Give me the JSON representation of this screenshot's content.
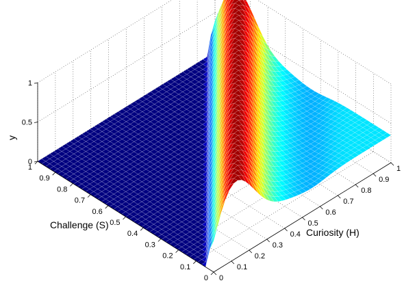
{
  "chart_data": {
    "type": "surface",
    "title": "",
    "xlabel": "Curiosity (H)",
    "ylabel": "Challenge (S)",
    "zlabel": "y",
    "xlim": [
      0,
      1
    ],
    "ylim": [
      0,
      1
    ],
    "zlim": [
      0,
      1
    ],
    "x_ticks": [
      "0",
      "0.1",
      "0.2",
      "0.3",
      "0.4",
      "0.5",
      "0.6",
      "0.7",
      "0.8",
      "0.9",
      "1"
    ],
    "y_ticks": [
      "0",
      "0.1",
      "0.2",
      "0.3",
      "0.4",
      "0.5",
      "0.6",
      "0.7",
      "0.8",
      "0.9",
      "1"
    ],
    "z_ticks": [
      "0",
      "0.5",
      "1"
    ],
    "grid": true,
    "colormap": "jet",
    "mesh_color": "#ffffff",
    "surface": {
      "description_of_shape": "y rises where Challenge is roughly equal to or slightly below Curiosity; near 0 elsewhere",
      "peak_value": 1.0,
      "plateau_value": 0.35,
      "ridge_width": 0.15
    }
  }
}
